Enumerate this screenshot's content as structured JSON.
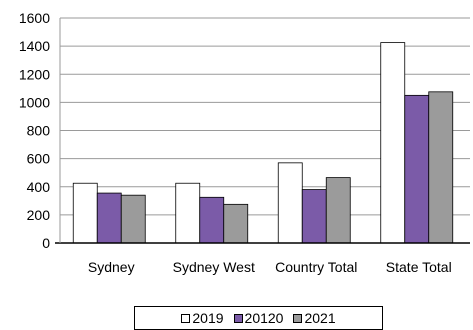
{
  "chart_data": {
    "type": "bar",
    "title": "",
    "xlabel": "",
    "ylabel": "",
    "categories": [
      "Sydney",
      "Sydney West",
      "Country Total",
      "State Total"
    ],
    "series": [
      {
        "name": "2019",
        "values": [
          425,
          425,
          570,
          1425
        ],
        "color": "#ffffff"
      },
      {
        "name": "20120",
        "values": [
          355,
          325,
          380,
          1050
        ],
        "color": "#7b5ba8"
      },
      {
        "name": "2021",
        "values": [
          340,
          275,
          465,
          1075
        ],
        "color": "#9b9b9b"
      }
    ],
    "ylim": [
      0,
      1600
    ],
    "yticks": [
      "0",
      "200",
      "400",
      "600",
      "800",
      "1000",
      "1200",
      "1400",
      "1600"
    ],
    "grid": true,
    "legend_position": "bottom"
  }
}
